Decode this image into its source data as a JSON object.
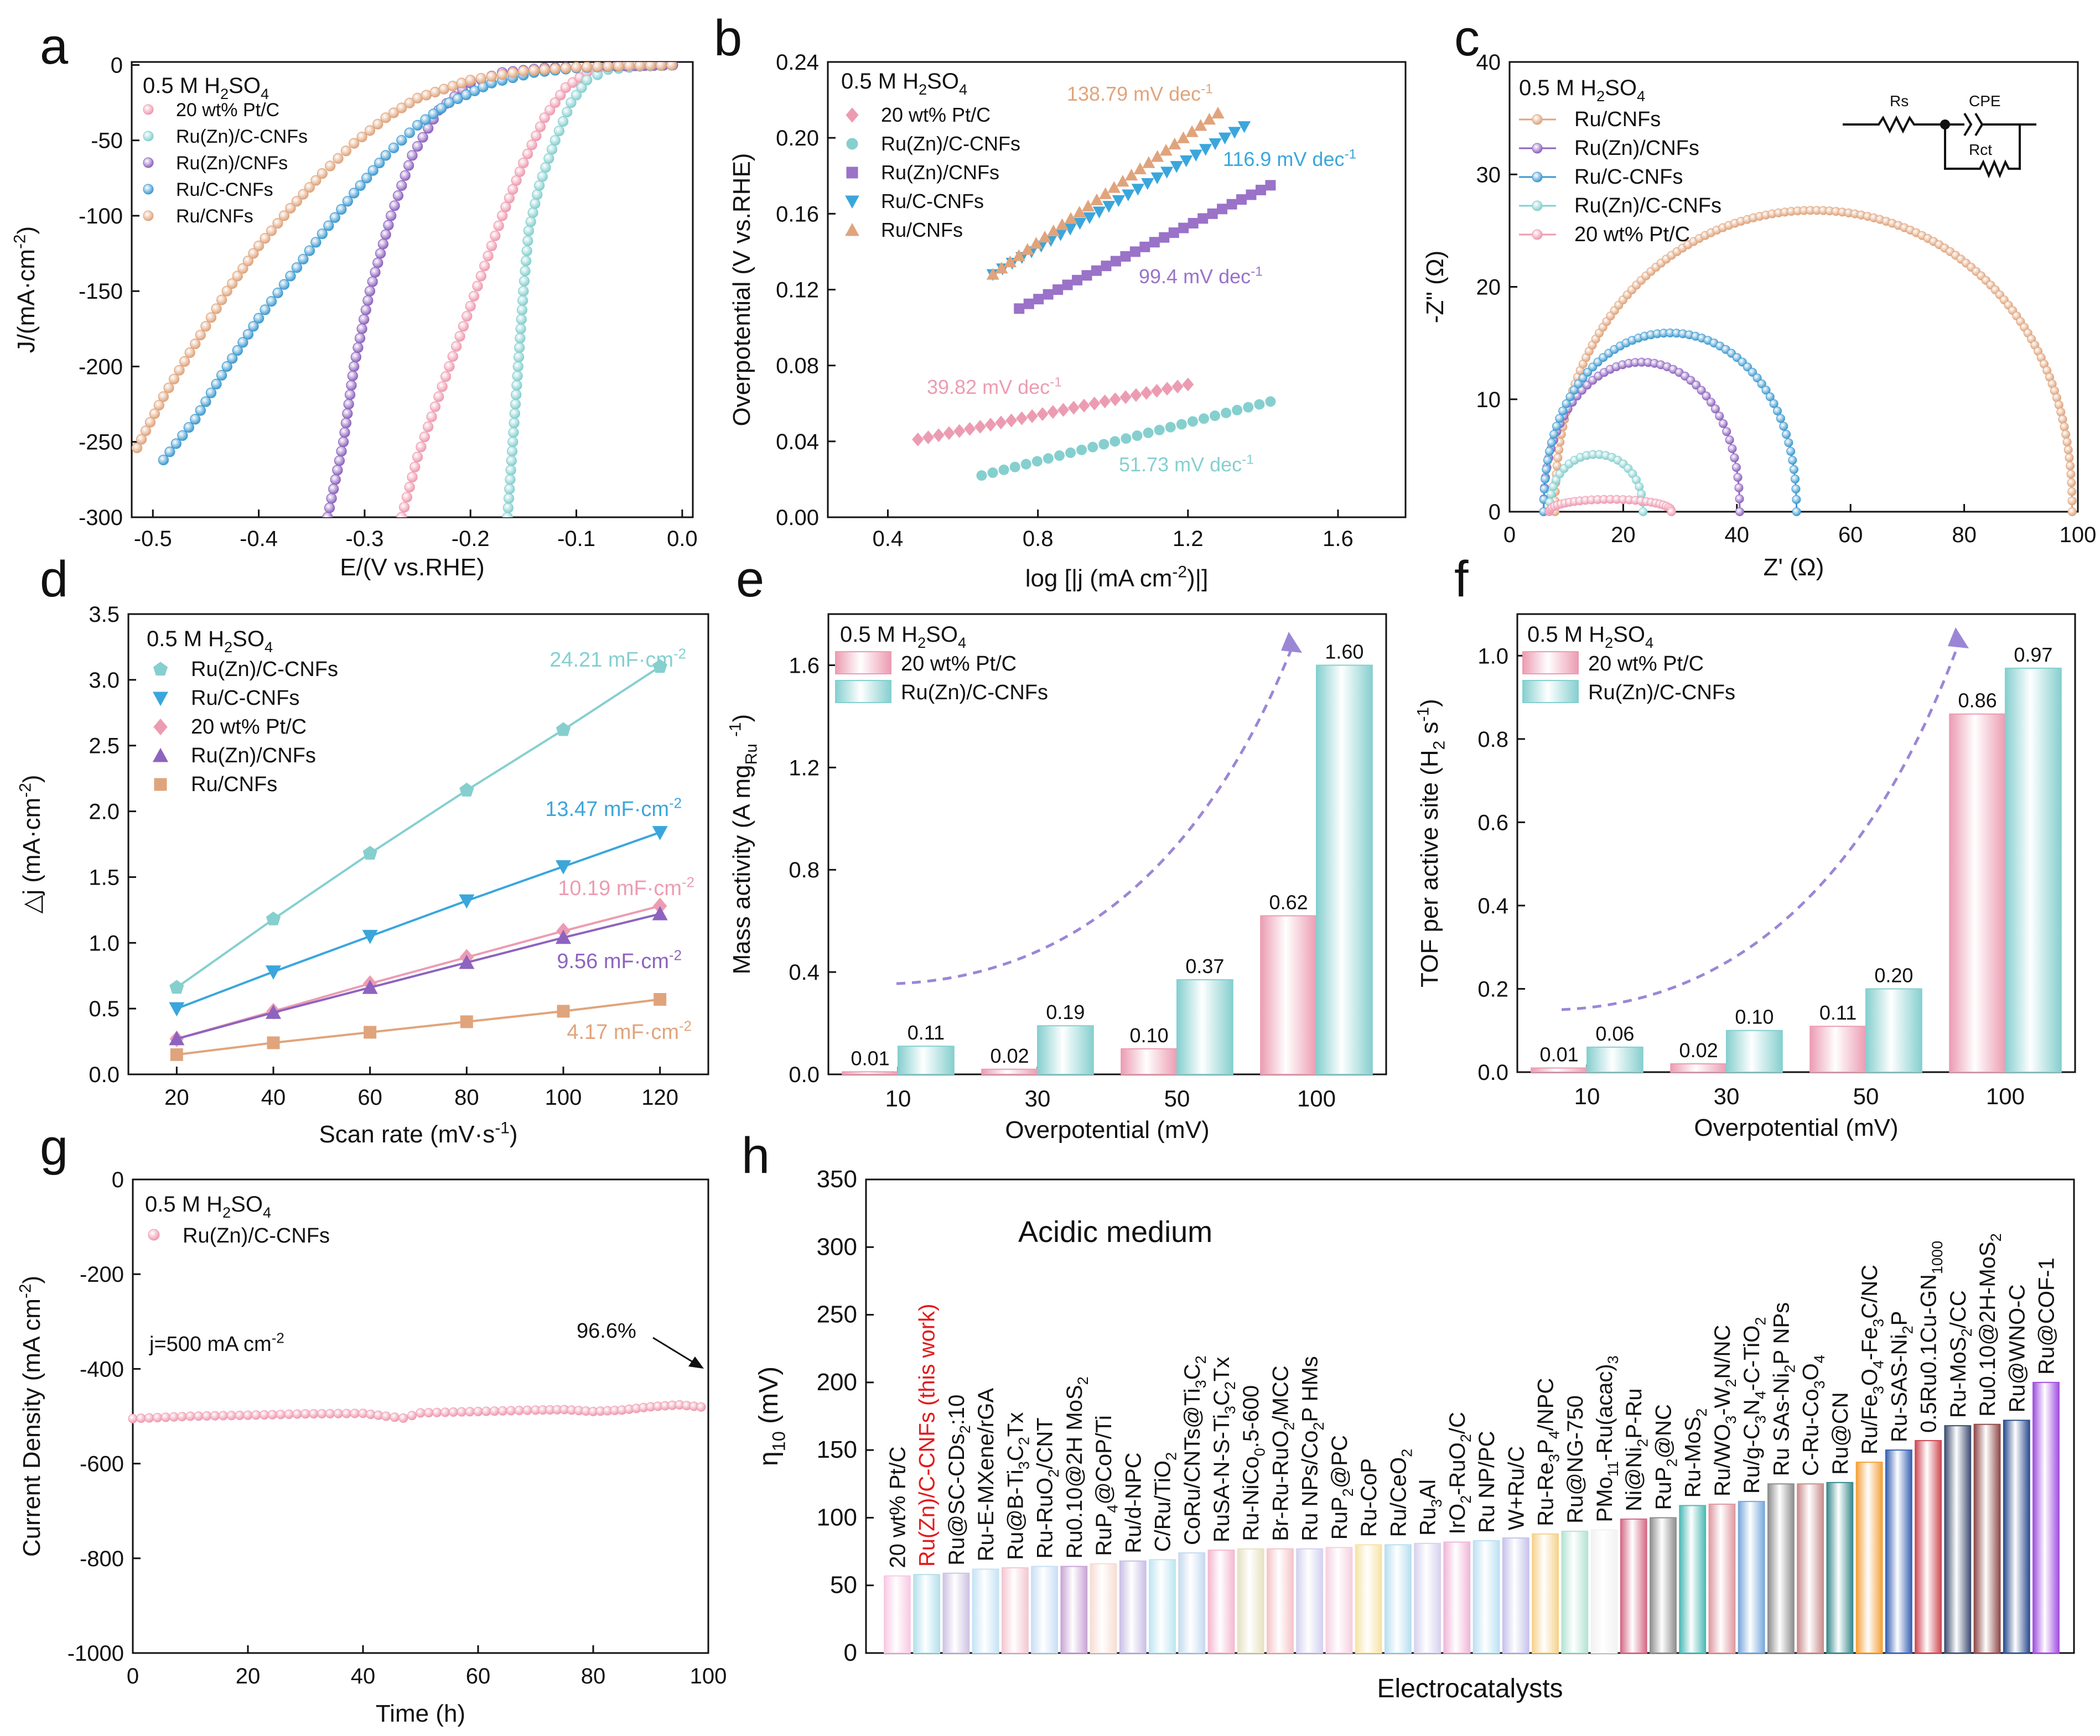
{
  "figure": {
    "panel_letters": [
      "a",
      "b",
      "c",
      "d",
      "e",
      "f",
      "g",
      "h"
    ],
    "electrolyte": "0.5 M H2SO4"
  },
  "chart_data": [
    {
      "id": "a",
      "type": "line",
      "xlabel": "E/(V vs.RHE)",
      "ylabel": "J/(mA·cm⁻²)",
      "xlim": [
        -0.52,
        0.01
      ],
      "ylim": [
        -300,
        2
      ],
      "xticks": [
        -0.5,
        -0.4,
        -0.3,
        -0.2,
        -0.1,
        0.0
      ],
      "xtick_labels": [
        "-0.5",
        "-0.4",
        "-0.3",
        "-0.2",
        "-0.1",
        "0.0"
      ],
      "yticks": [
        0,
        -50,
        -100,
        -150,
        -200,
        -250,
        -300
      ],
      "annotation": "0.5 M H2SO4",
      "series": [
        {
          "name": "20 wt% Pt/C",
          "color": "#ef9ab0",
          "points": [
            [
              -0.265,
              -300
            ],
            [
              -0.25,
              -260
            ],
            [
              -0.23,
              -220
            ],
            [
              -0.21,
              -180
            ],
            [
              -0.19,
              -140
            ],
            [
              -0.17,
              -100
            ],
            [
              -0.15,
              -65
            ],
            [
              -0.13,
              -35
            ],
            [
              -0.11,
              -15
            ],
            [
              -0.09,
              -5
            ],
            [
              -0.07,
              -2
            ],
            [
              -0.05,
              -1
            ],
            [
              0.0,
              0
            ]
          ]
        },
        {
          "name": "Ru(Zn)/C-CNFs",
          "color": "#86cfcf",
          "points": [
            [
              -0.165,
              -300
            ],
            [
              -0.16,
              -250
            ],
            [
              -0.155,
              -200
            ],
            [
              -0.15,
              -150
            ],
            [
              -0.145,
              -110
            ],
            [
              -0.135,
              -80
            ],
            [
              -0.12,
              -50
            ],
            [
              -0.105,
              -25
            ],
            [
              -0.09,
              -10
            ],
            [
              -0.07,
              -3
            ],
            [
              -0.04,
              -1
            ],
            [
              0.0,
              0
            ]
          ]
        },
        {
          "name": "Ru(Zn)/CNFs",
          "color": "#8e63bf",
          "points": [
            [
              -0.335,
              -300
            ],
            [
              -0.32,
              -250
            ],
            [
              -0.31,
              -200
            ],
            [
              -0.295,
              -150
            ],
            [
              -0.275,
              -100
            ],
            [
              -0.255,
              -60
            ],
            [
              -0.23,
              -30
            ],
            [
              -0.2,
              -12
            ],
            [
              -0.17,
              -5
            ],
            [
              -0.13,
              -2
            ],
            [
              -0.08,
              -1
            ],
            [
              0.0,
              0
            ]
          ]
        },
        {
          "name": "Ru/C-CNFs",
          "color": "#3e9ad1",
          "points": [
            [
              -0.49,
              -262
            ],
            [
              -0.46,
              -235
            ],
            [
              -0.43,
              -200
            ],
            [
              -0.4,
              -168
            ],
            [
              -0.37,
              -140
            ],
            [
              -0.34,
              -112
            ],
            [
              -0.31,
              -85
            ],
            [
              -0.28,
              -60
            ],
            [
              -0.25,
              -40
            ],
            [
              -0.22,
              -25
            ],
            [
              -0.18,
              -12
            ],
            [
              -0.14,
              -5
            ],
            [
              -0.1,
              -2
            ],
            [
              -0.05,
              -0.5
            ],
            [
              0.0,
              0
            ]
          ]
        },
        {
          "name": "Ru/CNFs",
          "color": "#e0a47c",
          "points": [
            [
              -0.515,
              -254
            ],
            [
              -0.49,
              -220
            ],
            [
              -0.46,
              -185
            ],
            [
              -0.43,
              -150
            ],
            [
              -0.4,
              -120
            ],
            [
              -0.37,
              -95
            ],
            [
              -0.34,
              -72
            ],
            [
              -0.31,
              -52
            ],
            [
              -0.28,
              -35
            ],
            [
              -0.25,
              -22
            ],
            [
              -0.2,
              -10
            ],
            [
              -0.15,
              -4
            ],
            [
              -0.1,
              -1.5
            ],
            [
              -0.05,
              -0.5
            ],
            [
              0.0,
              0
            ]
          ]
        }
      ]
    },
    {
      "id": "b",
      "type": "scatter",
      "xlabel": "log [|j (mA cm⁻²)|]",
      "ylabel": "Overpotential (V vs.RHE)",
      "xlim": [
        0.24,
        1.78
      ],
      "ylim": [
        0,
        0.24
      ],
      "xticks": [
        0.4,
        0.8,
        1.2,
        1.6
      ],
      "xtick_labels": [
        "0.4",
        "0.8",
        "1.2",
        "1.6"
      ],
      "yticks": [
        0,
        0.04,
        0.08,
        0.12,
        0.16,
        0.2,
        0.24
      ],
      "ytick_labels": [
        "0.00",
        "0.04",
        "0.08",
        "0.12",
        "0.16",
        "0.20",
        "0.24"
      ],
      "annotation": "0.5 M H2SO4",
      "series": [
        {
          "name": "20 wt% Pt/C",
          "color": "#ec9cb2",
          "marker": "diamond",
          "x_start": 0.48,
          "x_end": 1.2,
          "y_start": 0.041,
          "y_end": 0.07,
          "tafel": "39.82 mV dec-1"
        },
        {
          "name": "Ru(Zn)/C-CNFs",
          "color": "#86cfcf",
          "marker": "circle",
          "x_start": 0.65,
          "x_end": 1.42,
          "y_start": 0.022,
          "y_end": 0.061,
          "tafel": "51.73 mV dec-1"
        },
        {
          "name": "Ru(Zn)/CNFs",
          "color": "#9a72c8",
          "marker": "square",
          "x_start": 0.75,
          "x_end": 1.42,
          "y_start": 0.11,
          "y_end": 0.175,
          "tafel": "99.4 mV dec-1"
        },
        {
          "name": "Ru/C-CNFs",
          "color": "#3aa6dc",
          "marker": "triangle-down",
          "x_start": 0.68,
          "x_end": 1.35,
          "y_start": 0.128,
          "y_end": 0.206,
          "tafel": "116.9 mV dec-1"
        },
        {
          "name": "Ru/CNFs",
          "color": "#e0a47c",
          "marker": "triangle-up",
          "x_start": 0.68,
          "x_end": 1.28,
          "y_start": 0.128,
          "y_end": 0.213,
          "tafel": "138.79 mV dec-1"
        }
      ]
    },
    {
      "id": "c",
      "type": "line",
      "xlabel": "Z' (Ω)",
      "ylabel": "-Z\" (Ω)",
      "xlim": [
        0,
        100
      ],
      "ylim": [
        0,
        40
      ],
      "xticks": [
        0,
        20,
        40,
        60,
        80,
        100
      ],
      "yticks": [
        0,
        10,
        20,
        30,
        40
      ],
      "annotation": "0.5 M H2SO4",
      "circuit": {
        "r1": "Rs",
        "r2": "Rct",
        "cpe": "CPE"
      },
      "series": [
        {
          "name": "Ru/CNFs",
          "color": "#e0a47c",
          "r0": 8,
          "diameter": 91,
          "peak": 26.8
        },
        {
          "name": "Ru(Zn)/CNFs",
          "color": "#8e63bf",
          "r0": 6,
          "diameter": 34.5,
          "peak": 13.3
        },
        {
          "name": "Ru/C-CNFs",
          "color": "#3e9ad1",
          "r0": 6,
          "diameter": 44.5,
          "peak": 15.9
        },
        {
          "name": "Ru(Zn)/C-CNFs",
          "color": "#86cfcf",
          "r0": 7,
          "diameter": 16.5,
          "peak": 5.1
        },
        {
          "name": "20 wt% Pt/C",
          "color": "#ef9ab0",
          "r0": 7,
          "diameter": 21.5,
          "peak": 1.1
        }
      ]
    },
    {
      "id": "d",
      "type": "line",
      "xlabel": "Scan rate (mV·s⁻¹)",
      "ylabel": "△j (mA·cm⁻²)",
      "xlim": [
        10,
        130
      ],
      "ylim": [
        0,
        3.5
      ],
      "xticks": [
        20,
        40,
        60,
        80,
        100,
        120
      ],
      "yticks": [
        0,
        0.5,
        1.0,
        1.5,
        2.0,
        2.5,
        3.0,
        3.5
      ],
      "ytick_labels": [
        "0.0",
        "0.5",
        "1.0",
        "1.5",
        "2.0",
        "2.5",
        "3.0",
        "3.5"
      ],
      "annotation": "0.5 M H2SO4",
      "x": [
        20,
        40,
        60,
        80,
        100,
        120
      ],
      "series": [
        {
          "name": "Ru(Zn)/C-CNFs",
          "color": "#86cfcf",
          "marker": "pentagon",
          "values": [
            0.66,
            1.18,
            1.68,
            2.16,
            2.62,
            3.1
          ],
          "cdl": "24.21 mF·cm-2"
        },
        {
          "name": "Ru/C-CNFs",
          "color": "#3aa6dc",
          "marker": "triangle-down",
          "values": [
            0.5,
            0.78,
            1.05,
            1.32,
            1.58,
            1.84
          ],
          "cdl": "13.47 mF·cm-2"
        },
        {
          "name": "20 wt% Pt/C",
          "color": "#ec9cb2",
          "marker": "diamond",
          "values": [
            0.27,
            0.48,
            0.69,
            0.89,
            1.09,
            1.28
          ],
          "cdl": "10.19 mF·cm-2"
        },
        {
          "name": "Ru(Zn)/CNFs",
          "color": "#8e63bf",
          "marker": "triangle-up",
          "values": [
            0.27,
            0.47,
            0.66,
            0.85,
            1.04,
            1.22
          ],
          "cdl": "9.56 mF·cm-2"
        },
        {
          "name": "Ru/CNFs",
          "color": "#e0a47c",
          "marker": "square",
          "values": [
            0.15,
            0.24,
            0.32,
            0.4,
            0.48,
            0.57
          ],
          "cdl": "4.17 mF·cm-2"
        }
      ]
    },
    {
      "id": "e",
      "type": "bar",
      "xlabel": "Overpotential (mV)",
      "ylabel": "Mass activity (A mgRu-1)",
      "ylim": [
        0,
        1.8
      ],
      "yticks": [
        0,
        0.4,
        0.8,
        1.2,
        1.6
      ],
      "ytick_labels": [
        "0.0",
        "0.4",
        "0.8",
        "1.2",
        "1.6"
      ],
      "categories": [
        "10",
        "30",
        "50",
        "100"
      ],
      "annotation": "0.5 M H2SO4",
      "series": [
        {
          "name": "20 wt% Pt/C",
          "color": "#ec9cb2",
          "values": [
            0.01,
            0.02,
            0.1,
            0.62
          ],
          "labels": [
            "0.01",
            "0.02",
            "0.10",
            "0.62"
          ]
        },
        {
          "name": "Ru(Zn)/C-CNFs",
          "color": "#86cfcf",
          "values": [
            0.11,
            0.19,
            0.37,
            1.6
          ],
          "labels": [
            "0.11",
            "0.19",
            "0.37",
            "1.60"
          ]
        }
      ]
    },
    {
      "id": "f",
      "type": "bar",
      "xlabel": "Overpotential (mV)",
      "ylabel": "TOF per active site (H2 s-1)",
      "ylim": [
        0,
        1.1
      ],
      "yticks": [
        0,
        0.2,
        0.4,
        0.6,
        0.8,
        1.0
      ],
      "ytick_labels": [
        "0.0",
        "0.2",
        "0.4",
        "0.6",
        "0.8",
        "1.0"
      ],
      "categories": [
        "10",
        "30",
        "50",
        "100"
      ],
      "annotation": "0.5 M H2SO4",
      "series": [
        {
          "name": "20 wt% Pt/C",
          "color": "#ec9cb2",
          "values": [
            0.01,
            0.02,
            0.11,
            0.86
          ],
          "labels": [
            "0.01",
            "0.02",
            "0.11",
            "0.86"
          ]
        },
        {
          "name": "Ru(Zn)/C-CNFs",
          "color": "#86cfcf",
          "values": [
            0.06,
            0.1,
            0.2,
            0.97
          ],
          "labels": [
            "0.06",
            "0.10",
            "0.20",
            "0.97"
          ]
        }
      ]
    },
    {
      "id": "g",
      "type": "line",
      "xlabel": "Time (h)",
      "ylabel": "Current Density (mA cm⁻²)",
      "xlim": [
        0,
        100
      ],
      "ylim": [
        -1000,
        0
      ],
      "xticks": [
        0,
        20,
        40,
        60,
        80,
        100
      ],
      "yticks": [
        0,
        -200,
        -400,
        -600,
        -800,
        -1000
      ],
      "annotation": "0.5 M H2SO4",
      "series": [
        {
          "name": "Ru(Zn)/C-CNFs",
          "color": "#ef9ab0",
          "points": [
            [
              0,
              -505
            ],
            [
              10,
              -500
            ],
            [
              20,
              -498
            ],
            [
              30,
              -495
            ],
            [
              40,
              -494
            ],
            [
              44,
              -500
            ],
            [
              47,
              -504
            ],
            [
              50,
              -493
            ],
            [
              60,
              -490
            ],
            [
              70,
              -487
            ],
            [
              75,
              -486
            ],
            [
              80,
              -490
            ],
            [
              85,
              -487
            ],
            [
              90,
              -480
            ],
            [
              95,
              -476
            ],
            [
              100,
              -482
            ]
          ]
        }
      ],
      "labels": {
        "current": "j=500 mA cm-2",
        "retention": "96.6%"
      }
    },
    {
      "id": "h",
      "type": "bar",
      "xlabel": "Electrocatalysts",
      "ylabel": "η10 (mV)",
      "ylim": [
        0,
        350
      ],
      "yticks": [
        0,
        50,
        100,
        150,
        200,
        250,
        300,
        350
      ],
      "medium": "Acidic medium",
      "categories": [
        "20 wt% Pt/C",
        "Ru(Zn)/C-CNFs (this work)",
        "Ru@SC-CDs2:10",
        "Ru-E-MXene/rGA",
        "Ru@B-Ti3C2Tx",
        "Ru-RuO2/CNT",
        "Ru0.10@2H MoS2",
        "RuP4@CoP/Ti",
        "Ru/d-NPC",
        "C/Ru/TiO2",
        "CoRu/CNTs@Ti3C2",
        "RuSA-N-S-Ti3C2Tx",
        "Ru-NiCo0.5-600",
        "Br-Ru-RuO2/MCC",
        "Ru NPs/Co2P HMs",
        "RuP2@PC",
        "Ru-CoP",
        "Ru/CeO2",
        "Ru3Al",
        "IrO2-RuO2/C",
        "Ru NP/PC",
        "W+Ru/C",
        "Ru-Re3P4/NPC",
        "Ru@NG-750",
        "PMo11-Ru(acac)3",
        "Ni@Ni2P-Ru",
        "RuP2@NC",
        "Ru-MoS2",
        "Ru/WO3-W2N/NC",
        "Ru/g-C3N4-C-TiO2",
        "Ru SAs-Ni2P NPs",
        "C-Ru-Co3O4",
        "Ru@CN",
        "Ru/Fe3O4-Fe3C/NC",
        "Ru-SAS-Ni2P",
        "0.5Ru0.1Cu-GN1000",
        "Ru-MoS2/CC",
        "Ru0.10@2H-MoS2",
        "Ru@WNO-C",
        "Ru@COF-1"
      ],
      "values": [
        57,
        58,
        59,
        62,
        63,
        64,
        64,
        66,
        68,
        69,
        74,
        76,
        77,
        77,
        77,
        78,
        80,
        80,
        81,
        82,
        83,
        85,
        88,
        90,
        91,
        99,
        100,
        109,
        110,
        112,
        125,
        125,
        126,
        141,
        150,
        157,
        168,
        169,
        172,
        200
      ],
      "colors": [
        "#f9c9e3",
        "#b4e0ec",
        "#cfc3e3",
        "#c6e3f5",
        "#f3c7d3",
        "#c9dff5",
        "#c9a6d6",
        "#f7ddd4",
        "#c9c0e6",
        "#bfe6f1",
        "#c7daf1",
        "#f4b8cf",
        "#e6e1c2",
        "#f5c4c8",
        "#d4d1f0",
        "#f6cfe1",
        "#f7e3a6",
        "#b8dff0",
        "#d7d2ef",
        "#f0b8d8",
        "#bde1f3",
        "#c7c3ec",
        "#f5d28c",
        "#b5e3d3",
        "#f2f2f2",
        "#d56a86",
        "#8f8f8f",
        "#4dbab6",
        "#df9aa1",
        "#7aa9dc",
        "#8e8e8e",
        "#c98e8e",
        "#3a8a8e",
        "#f5a13a",
        "#3a62b2",
        "#cf4a55",
        "#3e4e72",
        "#8f4a4a",
        "#2c4d8e",
        "#a24fe0"
      ]
    }
  ]
}
